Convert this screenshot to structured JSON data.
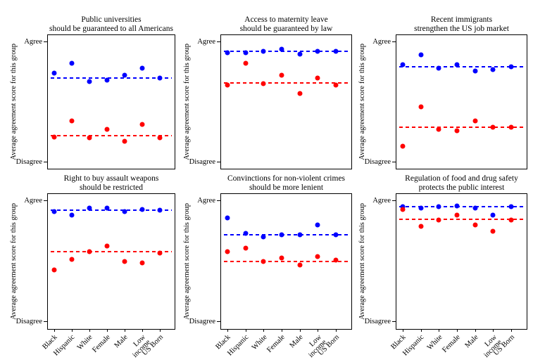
{
  "figure": {
    "background": "#ffffff",
    "text_color": "#000000",
    "axis": {
      "ylabel": "Average agreement score for this group",
      "ytick_top": "Agree",
      "ytick_bottom": "Disagree"
    },
    "colors": {
      "blue": "#0000ff",
      "red": "#ff0000"
    }
  },
  "chart_data": [
    {
      "type": "scatter",
      "title_line1": "Public universities",
      "title_line2": "should be guaranteed to all Americans",
      "categories": [
        "Black",
        "Hispanic",
        "White",
        "Female",
        "Male",
        "Low\nincome",
        "US Born"
      ],
      "ylim": [
        0,
        1
      ],
      "ytick_labels": [
        "Disagree",
        "Agree"
      ],
      "grid": false,
      "legend": "none",
      "series": [
        {
          "name": "blue",
          "color": "#0000ff",
          "values": [
            0.74,
            0.82,
            0.67,
            0.68,
            0.72,
            0.78,
            0.7
          ],
          "mean_line": 0.7
        },
        {
          "name": "red",
          "color": "#ff0000",
          "values": [
            0.21,
            0.34,
            0.2,
            0.27,
            0.17,
            0.31,
            0.2
          ],
          "mean_line": 0.22
        }
      ]
    },
    {
      "type": "scatter",
      "title_line1": "Access to maternity leave",
      "title_line2": "should be guaranteed by law",
      "categories": [
        "Black",
        "Hispanic",
        "White",
        "Female",
        "Male",
        "Low\nincome",
        "US Born"
      ],
      "ylim": [
        0,
        1
      ],
      "ytick_labels": [
        "Disagree",
        "Agree"
      ],
      "grid": false,
      "legend": "none",
      "series": [
        {
          "name": "blue",
          "color": "#0000ff",
          "values": [
            0.91,
            0.91,
            0.92,
            0.94,
            0.9,
            0.92,
            0.92
          ],
          "mean_line": 0.92
        },
        {
          "name": "red",
          "color": "#ff0000",
          "values": [
            0.64,
            0.82,
            0.65,
            0.72,
            0.57,
            0.7,
            0.64
          ],
          "mean_line": 0.66
        }
      ]
    },
    {
      "type": "scatter",
      "title_line1": "Recent immigrants",
      "title_line2": "strengthen the US job market",
      "categories": [
        "Black",
        "Hispanic",
        "White",
        "Female",
        "Male",
        "Low\nincome",
        "US Born"
      ],
      "ylim": [
        0,
        1
      ],
      "ytick_labels": [
        "Disagree",
        "Agree"
      ],
      "grid": false,
      "legend": "none",
      "series": [
        {
          "name": "blue",
          "color": "#0000ff",
          "values": [
            0.81,
            0.89,
            0.78,
            0.81,
            0.76,
            0.77,
            0.79
          ],
          "mean_line": 0.79
        },
        {
          "name": "red",
          "color": "#ff0000",
          "values": [
            0.13,
            0.46,
            0.27,
            0.26,
            0.34,
            0.29,
            0.29
          ],
          "mean_line": 0.29
        }
      ]
    },
    {
      "type": "scatter",
      "title_line1": "Right to buy assault weapons",
      "title_line2": "should be restricted",
      "categories": [
        "Black",
        "Hispanic",
        "White",
        "Female",
        "Male",
        "Low\nincome",
        "US Born"
      ],
      "ylim": [
        0,
        1
      ],
      "ytick_labels": [
        "Disagree",
        "Agree"
      ],
      "grid": false,
      "legend": "none",
      "series": [
        {
          "name": "blue",
          "color": "#0000ff",
          "values": [
            0.91,
            0.88,
            0.94,
            0.94,
            0.91,
            0.93,
            0.92
          ],
          "mean_line": 0.92
        },
        {
          "name": "red",
          "color": "#ff0000",
          "values": [
            0.43,
            0.52,
            0.58,
            0.63,
            0.5,
            0.49,
            0.57
          ],
          "mean_line": 0.58
        }
      ]
    },
    {
      "type": "scatter",
      "title_line1": "Convinctions for non-violent crimes",
      "title_line2": "should be more lenient",
      "categories": [
        "Black",
        "Hispanic",
        "White",
        "Female",
        "Male",
        "Low\nincome",
        "US Born"
      ],
      "ylim": [
        0,
        1
      ],
      "ytick_labels": [
        "Disagree",
        "Agree"
      ],
      "grid": false,
      "legend": "none",
      "series": [
        {
          "name": "blue",
          "color": "#0000ff",
          "values": [
            0.86,
            0.73,
            0.7,
            0.72,
            0.72,
            0.8,
            0.72
          ],
          "mean_line": 0.72
        },
        {
          "name": "red",
          "color": "#ff0000",
          "values": [
            0.58,
            0.61,
            0.5,
            0.53,
            0.47,
            0.54,
            0.51
          ],
          "mean_line": 0.5
        }
      ]
    },
    {
      "type": "scatter",
      "title_line1": "Regulation of food and drug safety",
      "title_line2": "protects the public interest",
      "categories": [
        "Black",
        "Hispanic",
        "White",
        "Female",
        "Male",
        "Low\nincome",
        "US Born"
      ],
      "ylim": [
        0,
        1
      ],
      "ytick_labels": [
        "Disagree",
        "Agree"
      ],
      "grid": false,
      "legend": "none",
      "series": [
        {
          "name": "blue",
          "color": "#0000ff",
          "values": [
            0.95,
            0.94,
            0.95,
            0.96,
            0.94,
            0.88,
            0.95
          ],
          "mean_line": 0.95
        },
        {
          "name": "red",
          "color": "#ff0000",
          "values": [
            0.93,
            0.79,
            0.84,
            0.88,
            0.8,
            0.75,
            0.84
          ],
          "mean_line": 0.85
        }
      ]
    }
  ]
}
